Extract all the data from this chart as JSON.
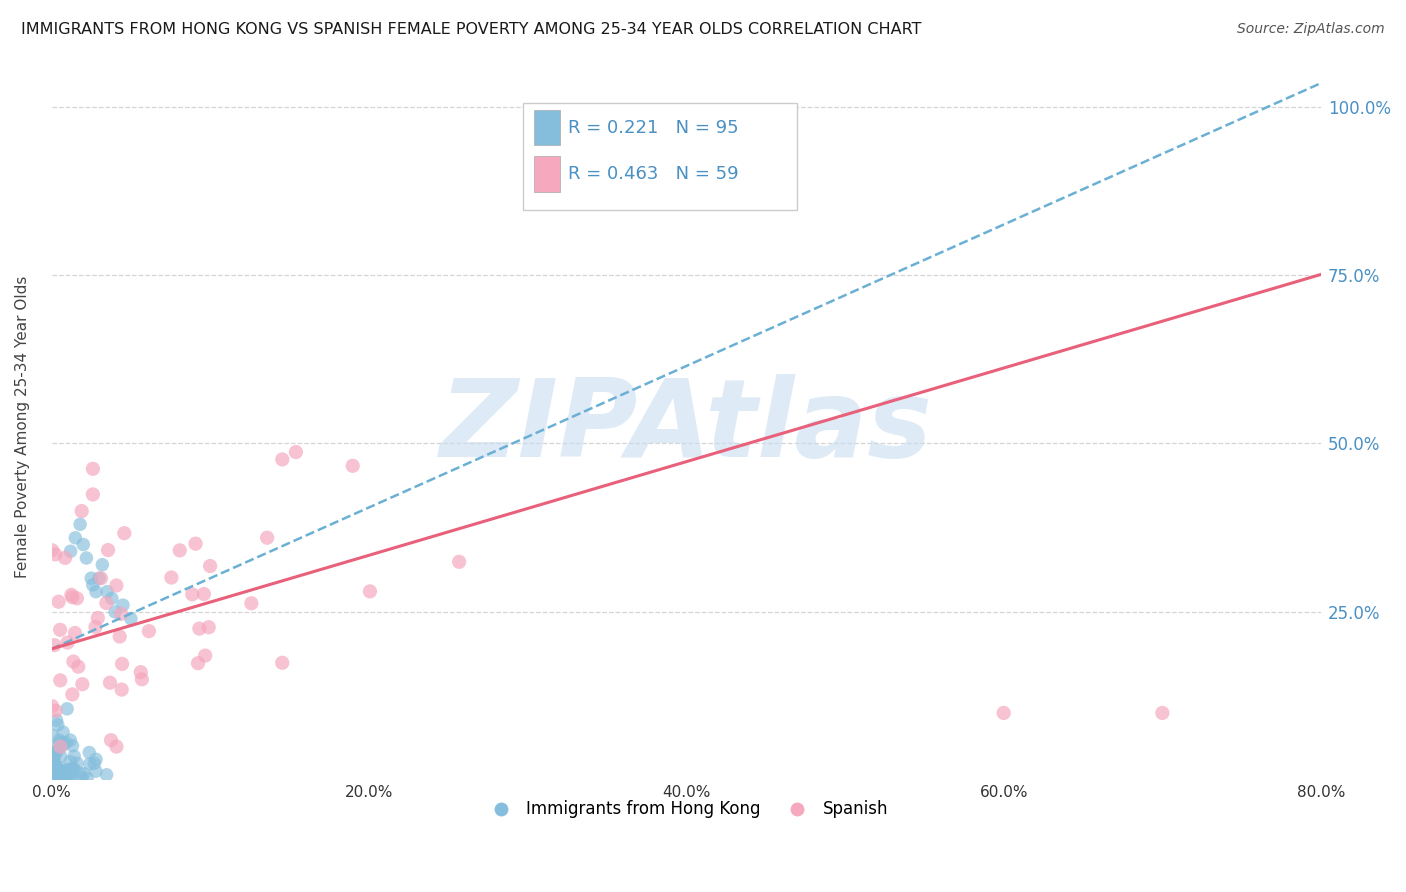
{
  "title": "IMMIGRANTS FROM HONG KONG VS SPANISH FEMALE POVERTY AMONG 25-34 YEAR OLDS CORRELATION CHART",
  "source_text": "Source: ZipAtlas.com",
  "ylabel": "Female Poverty Among 25-34 Year Olds",
  "xlabel_ticks": [
    "0.0%",
    "20.0%",
    "40.0%",
    "60.0%",
    "80.0%"
  ],
  "xlabel_vals": [
    0.0,
    0.2,
    0.4,
    0.6,
    0.8
  ],
  "ylabel_ticks_labels": [
    "25.0%",
    "50.0%",
    "75.0%",
    "100.0%"
  ],
  "ylabel_vals": [
    0.0,
    0.25,
    0.5,
    0.75,
    1.0
  ],
  "blue_R": 0.221,
  "blue_N": 95,
  "pink_R": 0.463,
  "pink_N": 59,
  "blue_color": "#85bedc",
  "pink_color": "#f5a8be",
  "blue_line_color": "#6aafd4",
  "pink_line_color": "#e8607a",
  "watermark_color": "#c8ddf0",
  "legend_label_blue": "Immigrants from Hong Kong",
  "legend_label_pink": "Spanish",
  "title_fontsize": 11.5,
  "source_fontsize": 10,
  "blue_line_intercept": 0.195,
  "blue_line_slope": 1.05,
  "pink_line_intercept": 0.195,
  "pink_line_slope": 0.695
}
